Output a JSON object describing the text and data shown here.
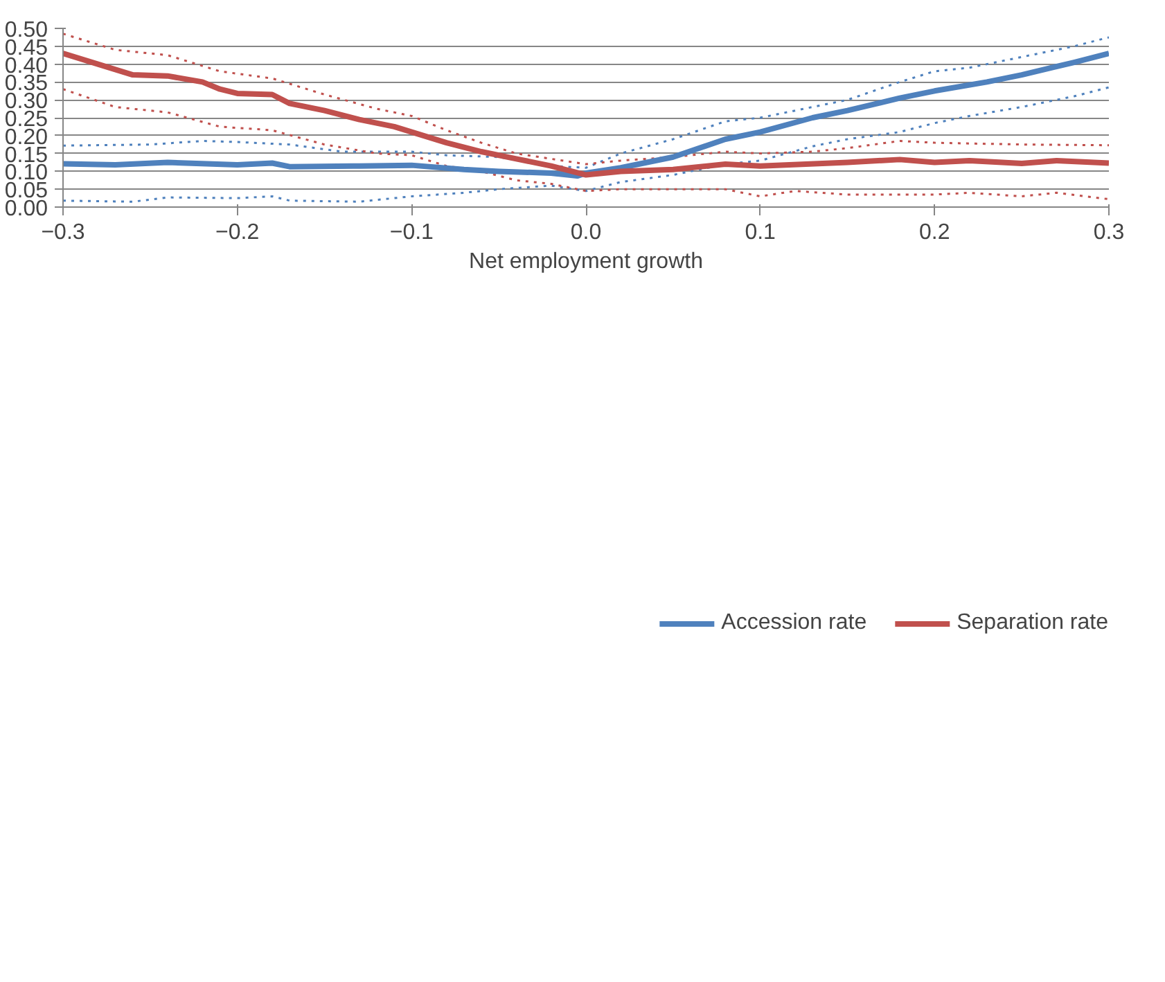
{
  "chart_data": {
    "type": "line",
    "xlabel": "Net employment growth",
    "xlim": [
      -0.3,
      0.3
    ],
    "ylim": [
      0,
      0.5
    ],
    "xticks": [
      -0.3,
      -0.2,
      -0.1,
      {
        "value": 0,
        "label": "0.0"
      },
      0.1,
      0.2,
      0.3
    ],
    "yticks": [
      {
        "value": 0,
        "label": "0.00"
      },
      {
        "value": 0.05,
        "label": "0.05"
      },
      {
        "value": 0.1,
        "label": "0.10"
      },
      {
        "value": 0.15,
        "label": "0.15"
      },
      {
        "value": 0.2,
        "label": "0.20"
      },
      {
        "value": 0.25,
        "label": "0.25"
      },
      {
        "value": 0.3,
        "label": "0.30"
      },
      {
        "value": 0.35,
        "label": "0.35"
      },
      {
        "value": 0.4,
        "label": "0.40"
      },
      {
        "value": 0.45,
        "label": "0.45"
      },
      {
        "value": 0.5,
        "label": "0.50"
      }
    ],
    "grid": "y",
    "legend": "bottom",
    "marker": "none",
    "line_style": "solid",
    "series": [
      {
        "color": "#4f81bd",
        "line_style": "dotted",
        "x": [
          -0.3,
          -0.25,
          -0.22,
          -0.2,
          -0.17,
          -0.14,
          -0.1,
          -0.08,
          -0.05,
          -0.02,
          0,
          0.02,
          0.05,
          0.08,
          0.1,
          0.13,
          0.15,
          0.18,
          0.2,
          0.22,
          0.25,
          0.28,
          0.3
        ],
        "values": [
          0.172,
          0.175,
          0.185,
          0.182,
          0.175,
          0.155,
          0.155,
          0.145,
          0.14,
          0.115,
          0.11,
          0.15,
          0.19,
          0.24,
          0.25,
          0.28,
          0.3,
          0.35,
          0.38,
          0.39,
          0.42,
          0.45,
          0.475
        ]
      },
      {
        "color": "#4f81bd",
        "line_style": "dotted",
        "x": [
          -0.3,
          -0.26,
          -0.24,
          -0.2,
          -0.18,
          -0.17,
          -0.13,
          -0.1,
          -0.07,
          -0.05,
          -0.02,
          0,
          0.02,
          0.05,
          0.08,
          0.1,
          0.13,
          0.15,
          0.18,
          0.2,
          0.22,
          0.25,
          0.28,
          0.3
        ],
        "values": [
          0.018,
          0.015,
          0.027,
          0.025,
          0.03,
          0.018,
          0.015,
          0.03,
          0.04,
          0.05,
          0.06,
          0.045,
          0.07,
          0.09,
          0.12,
          0.13,
          0.17,
          0.19,
          0.21,
          0.235,
          0.255,
          0.28,
          0.31,
          0.335
        ]
      },
      {
        "color": "#c0504d",
        "line_style": "dotted",
        "x": [
          -0.3,
          -0.27,
          -0.24,
          -0.21,
          -0.18,
          -0.15,
          -0.12,
          -0.1,
          -0.08,
          -0.06,
          -0.04,
          -0.02,
          0,
          0.02,
          0.05,
          0.08,
          0.1,
          0.13,
          0.15,
          0.18,
          0.2,
          0.25,
          0.3
        ],
        "values": [
          0.485,
          0.44,
          0.425,
          0.38,
          0.36,
          0.315,
          0.275,
          0.255,
          0.215,
          0.18,
          0.15,
          0.135,
          0.12,
          0.13,
          0.14,
          0.155,
          0.15,
          0.155,
          0.165,
          0.185,
          0.18,
          0.175,
          0.173
        ]
      },
      {
        "color": "#c0504d",
        "line_style": "dotted",
        "x": [
          -0.3,
          -0.27,
          -0.24,
          -0.21,
          -0.18,
          -0.15,
          -0.12,
          -0.1,
          -0.08,
          -0.06,
          -0.04,
          -0.02,
          0,
          0.02,
          0.05,
          0.08,
          0.1,
          0.12,
          0.15,
          0.2,
          0.22,
          0.25,
          0.27,
          0.3
        ],
        "values": [
          0.33,
          0.28,
          0.265,
          0.225,
          0.215,
          0.175,
          0.15,
          0.145,
          0.115,
          0.1,
          0.075,
          0.065,
          0.045,
          0.05,
          0.05,
          0.05,
          0.03,
          0.045,
          0.035,
          0.035,
          0.04,
          0.03,
          0.04,
          0.022
        ]
      },
      {
        "name": "Accession rate",
        "color": "#4f81bd",
        "x": [
          -0.3,
          -0.27,
          -0.24,
          -0.2,
          -0.18,
          -0.17,
          -0.13,
          -0.1,
          -0.07,
          -0.05,
          -0.02,
          -0.005,
          0,
          0.02,
          0.05,
          0.08,
          0.1,
          0.13,
          0.15,
          0.18,
          0.2,
          0.23,
          0.25,
          0.28,
          0.3
        ],
        "values": [
          0.121,
          0.118,
          0.125,
          0.118,
          0.123,
          0.113,
          0.115,
          0.117,
          0.105,
          0.1,
          0.095,
          0.087,
          0.095,
          0.11,
          0.14,
          0.19,
          0.21,
          0.25,
          0.27,
          0.305,
          0.325,
          0.35,
          0.37,
          0.405,
          0.43
        ]
      },
      {
        "name": "Separation rate",
        "color": "#c0504d",
        "x": [
          -0.3,
          -0.28,
          -0.26,
          -0.24,
          -0.22,
          -0.21,
          -0.2,
          -0.18,
          -0.17,
          -0.15,
          -0.13,
          -0.11,
          -0.1,
          -0.08,
          -0.06,
          -0.04,
          -0.02,
          0,
          0.02,
          0.05,
          0.08,
          0.1,
          0.15,
          0.18,
          0.2,
          0.22,
          0.25,
          0.27,
          0.3
        ],
        "values": [
          0.43,
          0.4,
          0.37,
          0.367,
          0.35,
          0.33,
          0.318,
          0.315,
          0.29,
          0.27,
          0.245,
          0.225,
          0.21,
          0.18,
          0.155,
          0.135,
          0.115,
          0.09,
          0.1,
          0.105,
          0.12,
          0.115,
          0.125,
          0.133,
          0.125,
          0.13,
          0.122,
          0.13,
          0.123
        ]
      }
    ]
  }
}
